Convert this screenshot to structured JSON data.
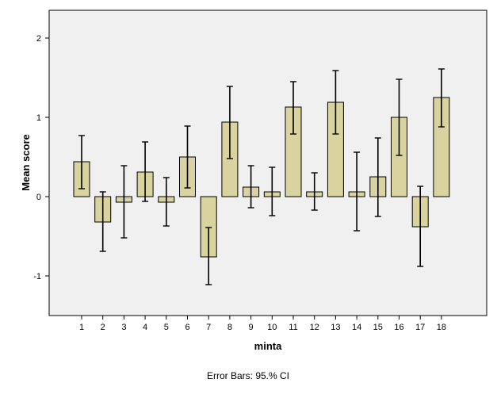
{
  "chart_data": {
    "type": "bar",
    "title": "",
    "xlabel": "minta",
    "ylabel": "Mean score",
    "footnote": "Error Bars: 95.% CI",
    "ylim": [
      -1.5,
      2.35
    ],
    "yticks": [
      -1,
      0,
      1,
      2
    ],
    "ytick_labels": [
      "-1",
      "0",
      "1",
      "2"
    ],
    "categories": [
      "1",
      "2",
      "3",
      "4",
      "5",
      "6",
      "7",
      "8",
      "9",
      "10",
      "11",
      "12",
      "13",
      "14",
      "15",
      "16",
      "17",
      "18"
    ],
    "values": [
      0.44,
      -0.32,
      -0.07,
      0.31,
      -0.07,
      0.5,
      -0.76,
      0.94,
      0.12,
      0.06,
      1.13,
      0.06,
      1.19,
      0.06,
      0.25,
      1.0,
      -0.38,
      1.25
    ],
    "ci_lower": [
      0.1,
      -0.69,
      -0.52,
      -0.06,
      -0.37,
      0.11,
      -1.11,
      0.48,
      -0.14,
      -0.24,
      0.79,
      -0.17,
      0.79,
      -0.43,
      -0.25,
      0.52,
      -0.88,
      0.88
    ],
    "ci_upper": [
      0.77,
      0.06,
      0.39,
      0.69,
      0.24,
      0.89,
      -0.39,
      1.39,
      0.39,
      0.37,
      1.45,
      0.3,
      1.59,
      0.56,
      0.74,
      1.48,
      0.13,
      1.61
    ],
    "grid": false,
    "colors": {
      "plot_background": "#f0f0f0",
      "bar_fill": "#d9d3a0",
      "bar_stroke": "#000000",
      "axis": "#000000"
    }
  }
}
